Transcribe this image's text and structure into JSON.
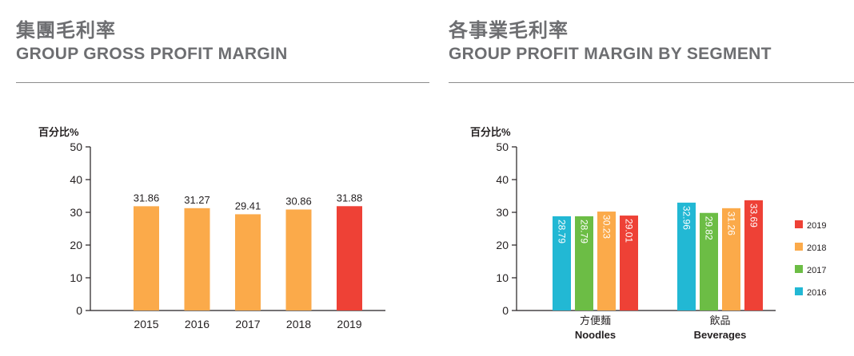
{
  "left": {
    "title_cn": "集團毛利率",
    "title_en": "GROUP GROSS PROFIT MARGIN"
  },
  "right": {
    "title_cn": "各事業毛利率",
    "title_en": "GROUP PROFIT MARGIN BY SEGMENT"
  },
  "colors": {
    "orange": "#fbaa4a",
    "red": "#ee4136",
    "cyan": "#22b8d4",
    "green": "#6cbd45",
    "axis": "#231f20",
    "title": "#6d6e71"
  },
  "chart_data": [
    {
      "type": "bar",
      "ylabel": "百分比%",
      "ylim": [
        0,
        50
      ],
      "yticks": [
        0,
        10,
        20,
        30,
        40,
        50
      ],
      "categories": [
        "2015",
        "2016",
        "2017",
        "2018",
        "2019"
      ],
      "values": [
        31.86,
        31.27,
        29.41,
        30.86,
        31.88
      ],
      "value_labels": [
        "31.86",
        "31.27",
        "29.41",
        "30.86",
        "31.88"
      ],
      "bar_colors": [
        "orange",
        "orange",
        "orange",
        "orange",
        "red"
      ]
    },
    {
      "type": "bar",
      "ylabel": "百分比%",
      "ylim": [
        0,
        50
      ],
      "yticks": [
        0,
        10,
        20,
        30,
        40,
        50
      ],
      "categories": [
        {
          "cn": "方便麵",
          "en": "Noodles"
        },
        {
          "cn": "飲品",
          "en": "Beverages"
        }
      ],
      "series": [
        {
          "name": "2016",
          "color": "cyan",
          "values": [
            28.79,
            32.96
          ],
          "labels": [
            "28.79",
            "32.96"
          ]
        },
        {
          "name": "2017",
          "color": "green",
          "values": [
            28.79,
            29.82
          ],
          "labels": [
            "28.79",
            "29.82"
          ]
        },
        {
          "name": "2018",
          "color": "orange",
          "values": [
            30.23,
            31.26
          ],
          "labels": [
            "30.23",
            "31.26"
          ]
        },
        {
          "name": "2019",
          "color": "red",
          "values": [
            29.01,
            33.69
          ],
          "labels": [
            "29.01",
            "33.69"
          ]
        }
      ],
      "legend_order": [
        "2019",
        "2018",
        "2017",
        "2016"
      ],
      "legend_position": "right"
    }
  ]
}
